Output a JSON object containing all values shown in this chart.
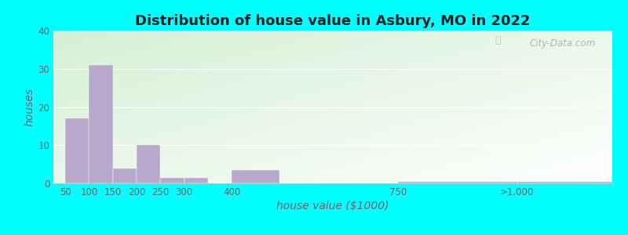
{
  "title": "Distribution of house value in Asbury, MO in 2022",
  "xlabel": "house value ($1000)",
  "ylabel": "houses",
  "bar_color": "#b8a9cc",
  "outer_bg": "#00ffff",
  "bar_positions": [
    50,
    100,
    150,
    200,
    250,
    300,
    400,
    750,
    1000
  ],
  "bar_heights": [
    17,
    31,
    4,
    10,
    1.5,
    1.5,
    3.5,
    0.5,
    0.5
  ],
  "bar_widths": [
    50,
    50,
    50,
    50,
    50,
    50,
    100,
    250,
    200
  ],
  "xtick_positions": [
    50,
    100,
    150,
    200,
    250,
    300,
    400,
    750,
    1000
  ],
  "xtick_labels": [
    "50",
    "100",
    "150",
    "200",
    "250",
    "300",
    "400",
    "750",
    ">1,000"
  ],
  "ytick_positions": [
    0,
    10,
    20,
    30,
    40
  ],
  "ylim": [
    0,
    40
  ],
  "xlim": [
    25,
    1200
  ],
  "gridline_color": "#ffffff",
  "title_fontsize": 13,
  "axis_label_fontsize": 10,
  "tick_fontsize": 8.5,
  "watermark_text": "City-Data.com",
  "grad_top_color": "#d6efd6",
  "grad_bottom_color": "#f0fbf0",
  "grad_right_color": "#ffffff"
}
